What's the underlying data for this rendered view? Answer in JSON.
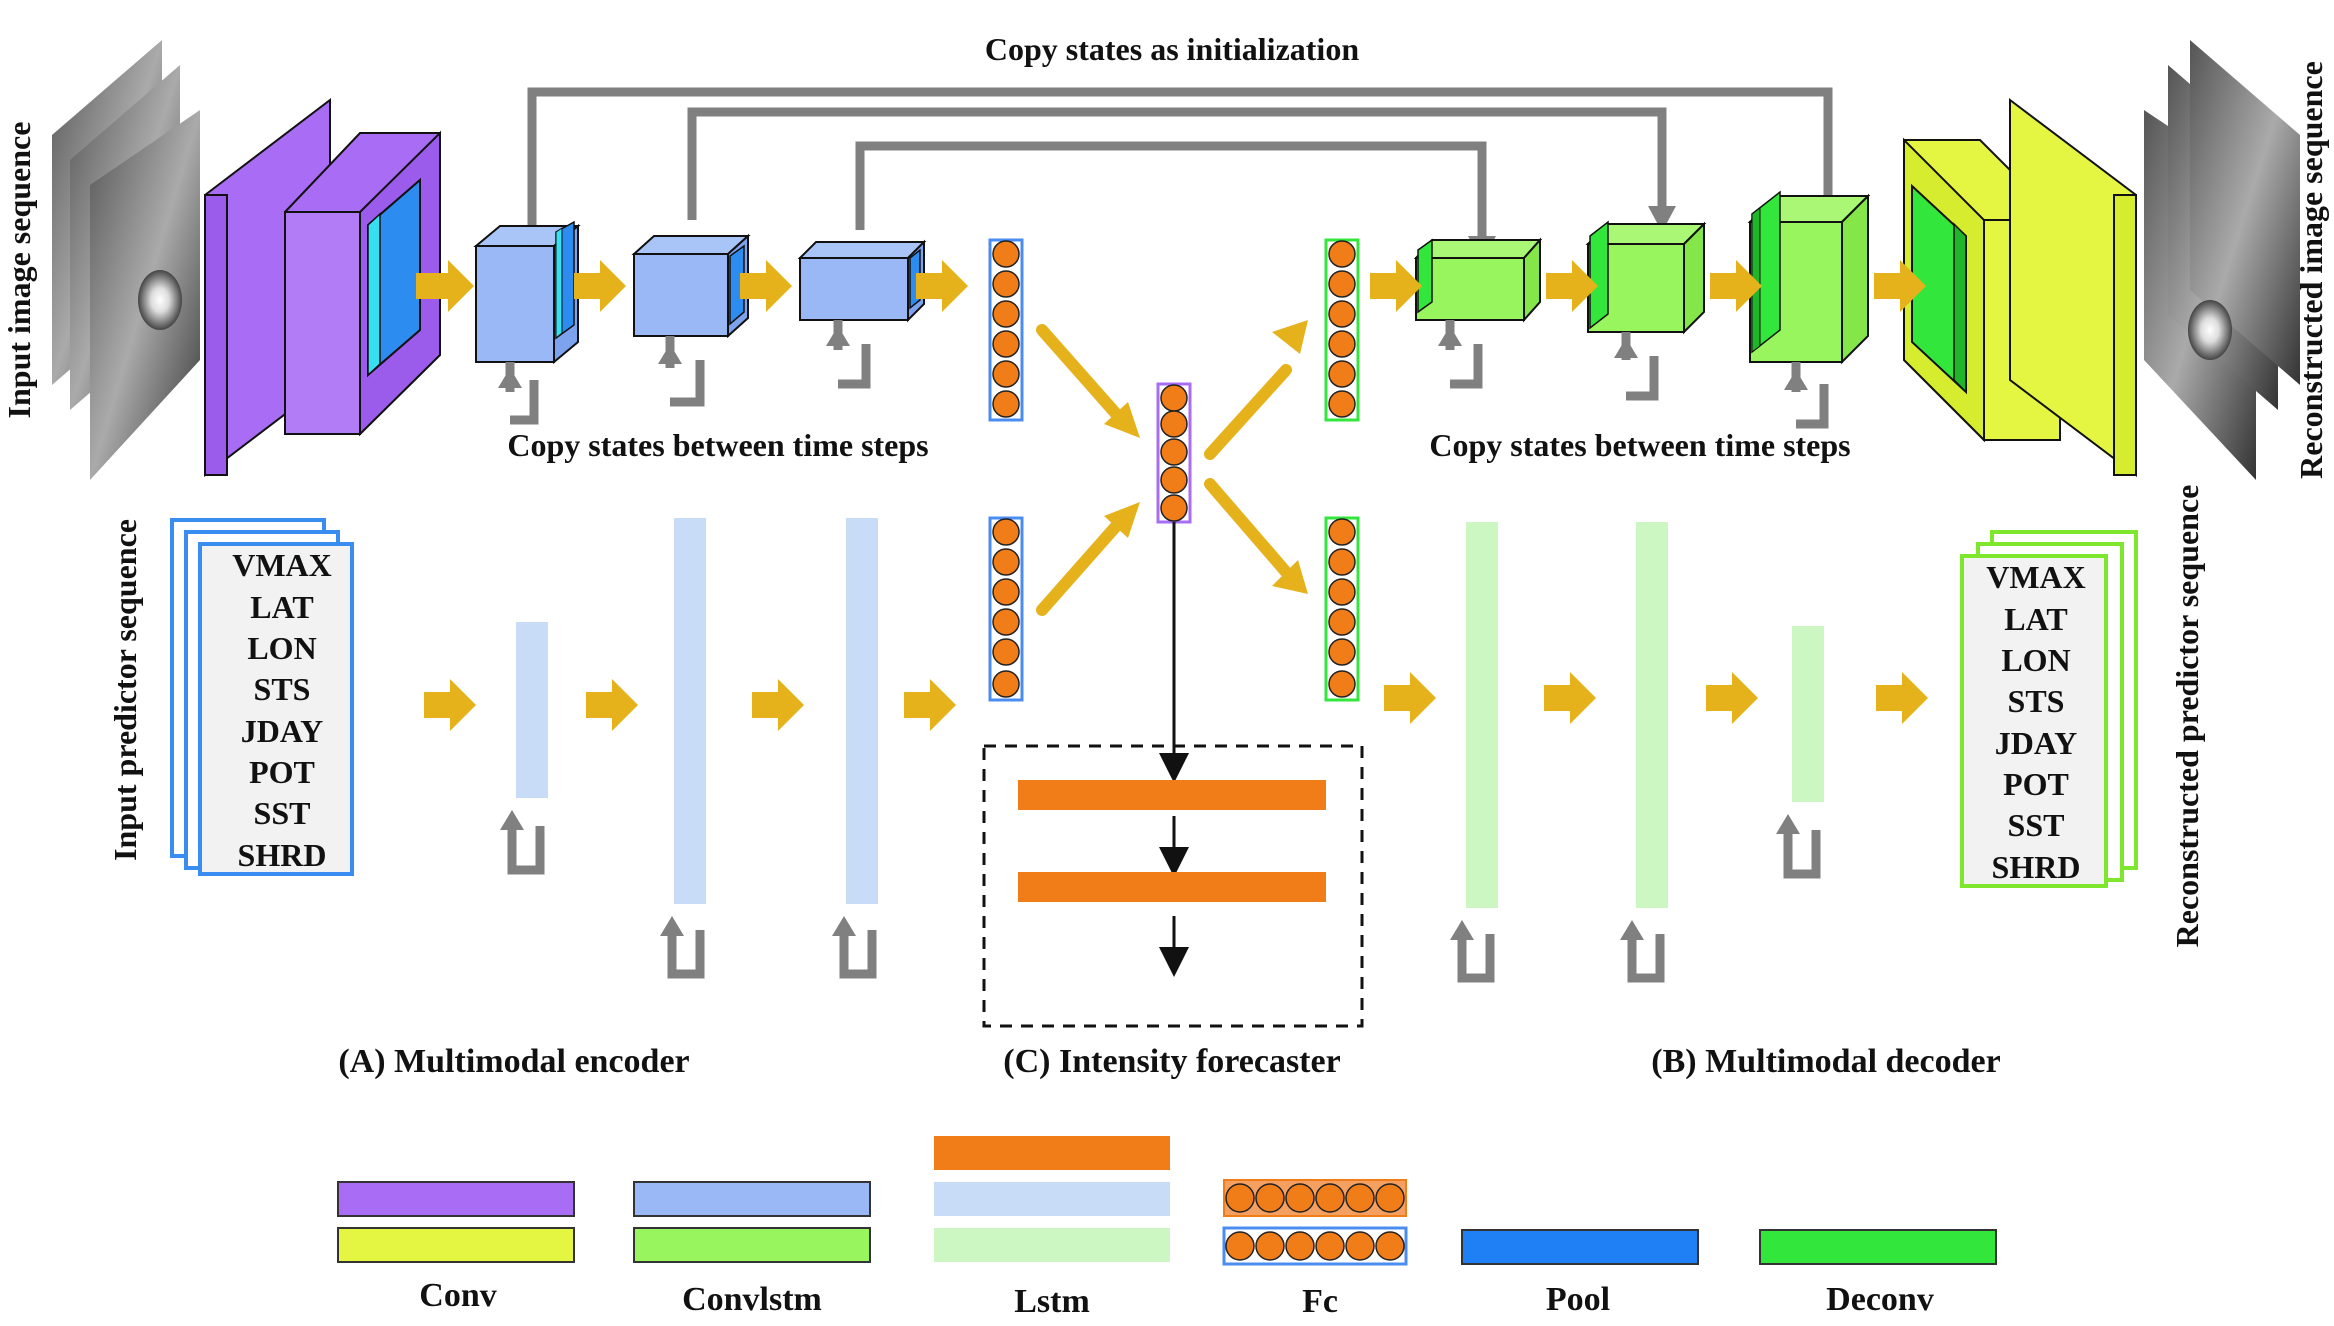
{
  "titles": {
    "copy_init": "Copy states as initialization",
    "copy_steps_left": "Copy states between time steps",
    "copy_steps_right": "Copy states between time steps",
    "input_image": "Input image sequence",
    "reconstructed_image": "Reconstructed image sequence",
    "input_predictor": "Input predictor sequence",
    "reconstructed_predictor": "Reconstructed predictor sequence"
  },
  "predictors_in": [
    "VMAX",
    "LAT",
    "LON",
    "STS",
    "JDAY",
    "POT",
    "SST",
    "SHRD"
  ],
  "predictors_out": [
    "VMAX",
    "LAT",
    "LON",
    "STS",
    "JDAY",
    "POT",
    "SST",
    "SHRD"
  ],
  "sections": {
    "encoder": "(A) Multimodal encoder",
    "forecaster": "(C) Intensity forecaster",
    "decoder": "(B) Multimodal decoder"
  },
  "legend": {
    "conv": "Conv",
    "convlstm": "Convlstm",
    "lstm": "Lstm",
    "fc": "Fc",
    "pool": "Pool",
    "deconv": "Deconv"
  },
  "colors": {
    "conv_enc": "#a86cf5",
    "conv_dec": "#e4f542",
    "convlstm_enc": "#99b8f5",
    "convlstm_dec": "#99f55e",
    "lstm_dark": "#f07d18",
    "lstm_enc": "#c9dcf7",
    "lstm_dec": "#ccf7c2",
    "pool": "#1f7ff5",
    "deconv": "#33e63b",
    "arrow": "#e6b21c",
    "copy": "#808080"
  },
  "icons": {
    "data_flow": "arrow-right-icon",
    "copy_state": "loop-arrow-icon"
  }
}
